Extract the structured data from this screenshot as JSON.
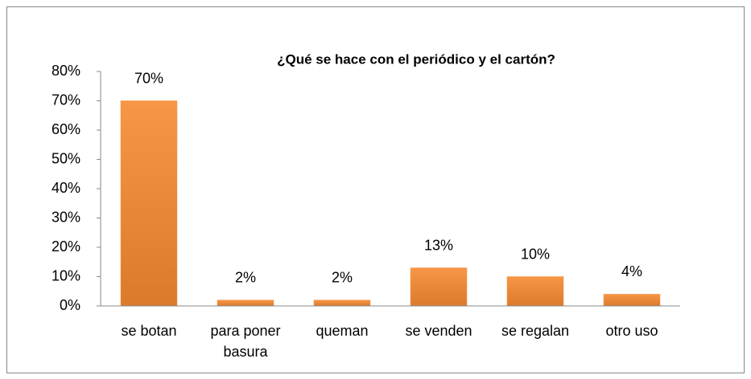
{
  "chart_data": {
    "type": "bar",
    "title": "¿Qué se hace con el periódico  y el cartón?",
    "categories": [
      "se botan",
      "para poner basura",
      "queman",
      "se venden",
      "se regalan",
      "otro uso"
    ],
    "values": [
      70,
      2,
      2,
      13,
      10,
      4
    ],
    "value_labels": [
      "70%",
      "2%",
      "2%",
      "13%",
      "10%",
      "4%"
    ],
    "color": "#f79646",
    "ylim": [
      0,
      80
    ],
    "yticks": [
      {
        "value": 0,
        "label": "0%"
      },
      {
        "value": 10,
        "label": "10%"
      },
      {
        "value": 20,
        "label": "20%"
      },
      {
        "value": 30,
        "label": "30%"
      },
      {
        "value": 40,
        "label": "40%"
      },
      {
        "value": 50,
        "label": "50%"
      },
      {
        "value": 60,
        "label": "60%"
      },
      {
        "value": 70,
        "label": "70%"
      },
      {
        "value": 80,
        "label": "80%"
      }
    ],
    "grid": false
  }
}
